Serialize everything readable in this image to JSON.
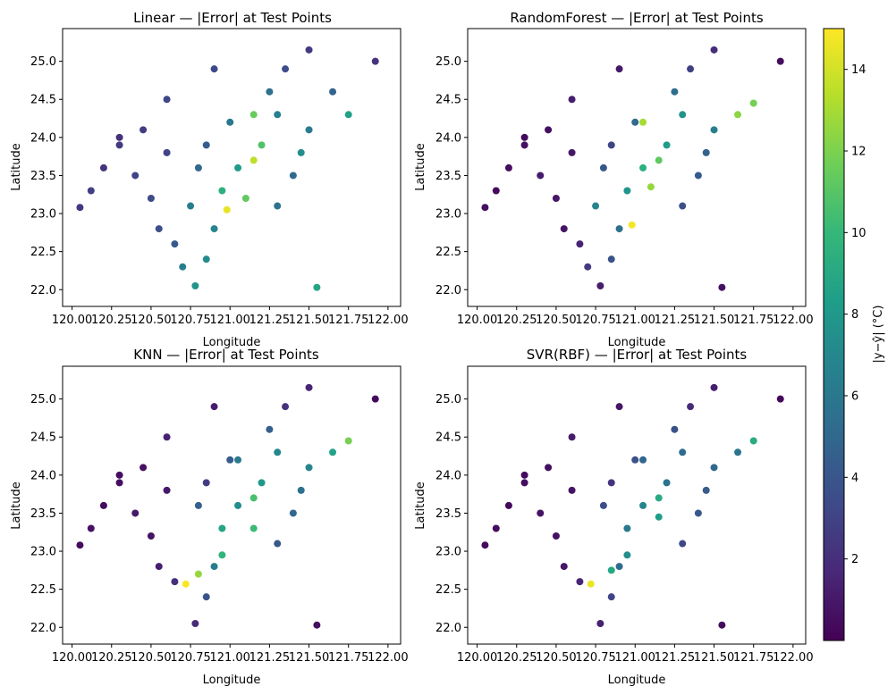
{
  "chart_data": [
    {
      "type": "scatter",
      "title": "Linear — |Error| at Test Points",
      "xlabel": "Longitude",
      "ylabel": "Latitude",
      "xlim": [
        119.94,
        122.08
      ],
      "ylim": [
        21.78,
        25.43
      ],
      "xticks": [
        "120.00",
        "120.25",
        "120.50",
        "120.75",
        "121.00",
        "121.25",
        "121.50",
        "121.75",
        "122.00"
      ],
      "yticks": [
        "22.0",
        "22.5",
        "23.0",
        "23.5",
        "24.0",
        "24.5",
        "25.0"
      ],
      "points": [
        [
          120.05,
          23.08,
          2.4
        ],
        [
          120.12,
          23.3,
          2.8
        ],
        [
          120.2,
          23.6,
          2.2
        ],
        [
          120.3,
          23.9,
          2.6
        ],
        [
          120.4,
          23.5,
          3.1
        ],
        [
          120.5,
          23.2,
          3.4
        ],
        [
          120.55,
          22.8,
          3.6
        ],
        [
          120.65,
          22.6,
          4.2
        ],
        [
          120.7,
          22.3,
          6.5
        ],
        [
          120.78,
          22.05,
          7.8
        ],
        [
          120.85,
          22.4,
          7.2
        ],
        [
          120.9,
          22.8,
          6.8
        ],
        [
          120.95,
          23.3,
          9.5
        ],
        [
          121.05,
          23.6,
          8.2
        ],
        [
          121.15,
          23.7,
          13.5
        ],
        [
          121.2,
          23.9,
          10.8
        ],
        [
          121.15,
          24.3,
          11.5
        ],
        [
          121.25,
          24.6,
          5.5
        ],
        [
          121.35,
          24.9,
          3.5
        ],
        [
          121.5,
          25.15,
          2.6
        ],
        [
          121.65,
          24.6,
          4.8
        ],
        [
          121.75,
          24.3,
          8.5
        ],
        [
          121.5,
          24.1,
          6.2
        ],
        [
          121.4,
          23.5,
          5.2
        ],
        [
          121.3,
          23.1,
          5.8
        ],
        [
          121.55,
          22.03,
          8.8
        ],
        [
          121.92,
          25.0,
          2.2
        ],
        [
          120.3,
          24.0,
          2.1
        ],
        [
          120.45,
          24.1,
          2.7
        ],
        [
          120.6,
          24.5,
          3.2
        ],
        [
          120.9,
          24.9,
          3.3
        ],
        [
          121.0,
          24.2,
          6.0
        ],
        [
          120.8,
          23.6,
          5.0
        ],
        [
          120.85,
          23.9,
          4.4
        ],
        [
          121.1,
          23.2,
          11.3
        ],
        [
          120.98,
          23.05,
          14.5
        ],
        [
          120.75,
          23.1,
          6.4
        ],
        [
          120.6,
          23.8,
          3.0
        ],
        [
          121.3,
          24.3,
          6.6
        ],
        [
          121.45,
          23.8,
          7.4
        ]
      ]
    },
    {
      "type": "scatter",
      "title": "RandomForest — |Error| at Test Points",
      "xlabel": "Longitude",
      "ylabel": "Latitude",
      "xlim": [
        119.94,
        122.08
      ],
      "ylim": [
        21.78,
        25.43
      ],
      "xticks": [
        "120.00",
        "120.25",
        "120.50",
        "120.75",
        "121.00",
        "121.25",
        "121.50",
        "121.75",
        "122.00"
      ],
      "yticks": [
        "22.0",
        "22.5",
        "23.0",
        "23.5",
        "24.0",
        "24.5",
        "25.0"
      ],
      "points": [
        [
          120.05,
          23.08,
          0.6
        ],
        [
          120.12,
          23.3,
          0.4
        ],
        [
          120.2,
          23.6,
          0.5
        ],
        [
          120.3,
          23.9,
          0.7
        ],
        [
          120.4,
          23.5,
          1.1
        ],
        [
          120.5,
          23.2,
          0.9
        ],
        [
          120.55,
          22.8,
          0.8
        ],
        [
          120.65,
          22.6,
          1.5
        ],
        [
          120.7,
          22.3,
          2.5
        ],
        [
          120.78,
          22.05,
          1.2
        ],
        [
          120.85,
          22.4,
          3.8
        ],
        [
          120.9,
          22.8,
          5.5
        ],
        [
          120.95,
          23.3,
          7.8
        ],
        [
          121.05,
          23.6,
          9.5
        ],
        [
          121.15,
          23.7,
          11.2
        ],
        [
          121.2,
          23.9,
          8.2
        ],
        [
          121.05,
          24.2,
          13.0
        ],
        [
          121.25,
          24.6,
          5.4
        ],
        [
          121.35,
          24.9,
          2.8
        ],
        [
          121.5,
          25.15,
          1.9
        ],
        [
          121.65,
          24.3,
          12.4
        ],
        [
          121.75,
          24.45,
          11.8
        ],
        [
          121.5,
          24.1,
          6.5
        ],
        [
          121.4,
          23.5,
          4.2
        ],
        [
          121.3,
          23.1,
          3.6
        ],
        [
          121.55,
          22.03,
          0.7
        ],
        [
          121.92,
          25.0,
          0.5
        ],
        [
          120.3,
          24.0,
          0.4
        ],
        [
          120.45,
          24.1,
          0.6
        ],
        [
          120.6,
          24.5,
          1.3
        ],
        [
          120.9,
          24.9,
          1.0
        ],
        [
          121.0,
          24.2,
          5.1
        ],
        [
          120.8,
          23.6,
          4.0
        ],
        [
          120.85,
          23.9,
          3.1
        ],
        [
          121.1,
          23.35,
          12.6
        ],
        [
          120.98,
          22.85,
          14.8
        ],
        [
          120.75,
          23.1,
          6.8
        ],
        [
          120.6,
          23.8,
          0.9
        ],
        [
          121.3,
          24.3,
          7.7
        ],
        [
          121.45,
          23.8,
          4.7
        ]
      ]
    },
    {
      "type": "scatter",
      "title": "KNN — |Error| at Test Points",
      "xlabel": "Longitude",
      "ylabel": "Latitude",
      "xlim": [
        119.94,
        122.08
      ],
      "ylim": [
        21.78,
        25.43
      ],
      "xticks": [
        "120.00",
        "120.25",
        "120.50",
        "120.75",
        "121.00",
        "121.25",
        "121.50",
        "121.75",
        "122.00"
      ],
      "yticks": [
        "22.0",
        "22.5",
        "23.0",
        "23.5",
        "24.0",
        "24.5",
        "25.0"
      ],
      "points": [
        [
          120.05,
          23.08,
          0.5
        ],
        [
          120.12,
          23.3,
          0.7
        ],
        [
          120.2,
          23.6,
          0.4
        ],
        [
          120.3,
          23.9,
          0.6
        ],
        [
          120.4,
          23.5,
          1.0
        ],
        [
          120.5,
          23.2,
          0.8
        ],
        [
          120.55,
          22.8,
          1.2
        ],
        [
          120.65,
          22.6,
          2.0
        ],
        [
          120.72,
          22.57,
          14.9
        ],
        [
          120.78,
          22.05,
          1.8
        ],
        [
          120.85,
          22.4,
          3.9
        ],
        [
          120.9,
          22.8,
          6.3
        ],
        [
          120.95,
          23.3,
          8.8
        ],
        [
          121.05,
          23.6,
          7.4
        ],
        [
          121.15,
          23.7,
          10.6
        ],
        [
          121.2,
          23.9,
          7.9
        ],
        [
          121.05,
          24.2,
          6.2
        ],
        [
          121.25,
          24.6,
          4.5
        ],
        [
          121.35,
          24.9,
          2.2
        ],
        [
          121.5,
          25.15,
          1.6
        ],
        [
          121.65,
          24.3,
          8.6
        ],
        [
          121.75,
          24.45,
          11.9
        ],
        [
          121.5,
          24.1,
          6.8
        ],
        [
          121.4,
          23.5,
          5.0
        ],
        [
          121.3,
          23.1,
          4.1
        ],
        [
          121.55,
          22.03,
          0.6
        ],
        [
          121.92,
          25.0,
          0.4
        ],
        [
          120.3,
          24.0,
          0.5
        ],
        [
          120.45,
          24.1,
          0.7
        ],
        [
          120.6,
          24.5,
          1.4
        ],
        [
          120.9,
          24.9,
          1.1
        ],
        [
          121.0,
          24.2,
          4.4
        ],
        [
          120.8,
          23.6,
          4.6
        ],
        [
          120.85,
          23.9,
          2.7
        ],
        [
          121.15,
          23.3,
          10.2
        ],
        [
          120.95,
          22.95,
          9.7
        ],
        [
          120.8,
          22.7,
          12.6
        ],
        [
          120.6,
          23.8,
          1.0
        ],
        [
          121.3,
          24.3,
          6.9
        ],
        [
          121.45,
          23.8,
          5.5
        ]
      ]
    },
    {
      "type": "scatter",
      "title": "SVR(RBF) — |Error| at Test Points",
      "xlabel": "Longitude",
      "ylabel": "Latitude",
      "xlim": [
        119.94,
        122.08
      ],
      "ylim": [
        21.78,
        25.43
      ],
      "xticks": [
        "120.00",
        "120.25",
        "120.50",
        "120.75",
        "121.00",
        "121.25",
        "121.50",
        "121.75",
        "122.00"
      ],
      "yticks": [
        "22.0",
        "22.5",
        "23.0",
        "23.5",
        "24.0",
        "24.5",
        "25.0"
      ],
      "points": [
        [
          120.05,
          23.08,
          0.4
        ],
        [
          120.12,
          23.3,
          0.5
        ],
        [
          120.2,
          23.6,
          0.3
        ],
        [
          120.3,
          23.9,
          0.5
        ],
        [
          120.4,
          23.5,
          0.8
        ],
        [
          120.5,
          23.2,
          0.7
        ],
        [
          120.55,
          22.8,
          0.9
        ],
        [
          120.65,
          22.6,
          1.6
        ],
        [
          120.72,
          22.57,
          14.6
        ],
        [
          120.78,
          22.05,
          1.4
        ],
        [
          120.85,
          22.4,
          3.0
        ],
        [
          120.9,
          22.8,
          5.2
        ],
        [
          120.95,
          23.3,
          6.1
        ],
        [
          121.05,
          23.6,
          6.8
        ],
        [
          121.15,
          23.7,
          9.1
        ],
        [
          121.2,
          23.9,
          5.7
        ],
        [
          121.05,
          24.2,
          4.9
        ],
        [
          121.25,
          24.6,
          3.8
        ],
        [
          121.35,
          24.9,
          1.8
        ],
        [
          121.5,
          25.15,
          1.3
        ],
        [
          121.65,
          24.3,
          5.9
        ],
        [
          121.75,
          24.45,
          9.2
        ],
        [
          121.5,
          24.1,
          5.0
        ],
        [
          121.4,
          23.5,
          4.1
        ],
        [
          121.3,
          23.1,
          3.2
        ],
        [
          121.55,
          22.03,
          0.5
        ],
        [
          121.92,
          25.0,
          0.3
        ],
        [
          120.3,
          24.0,
          0.4
        ],
        [
          120.45,
          24.1,
          0.6
        ],
        [
          120.6,
          24.5,
          1.1
        ],
        [
          120.9,
          24.9,
          0.9
        ],
        [
          121.0,
          24.2,
          3.7
        ],
        [
          120.8,
          23.6,
          3.5
        ],
        [
          120.85,
          23.9,
          2.2
        ],
        [
          121.15,
          23.45,
          8.3
        ],
        [
          120.95,
          22.95,
          7.4
        ],
        [
          120.85,
          22.75,
          8.9
        ],
        [
          120.6,
          23.8,
          0.8
        ],
        [
          121.3,
          24.3,
          5.3
        ],
        [
          121.45,
          23.8,
          4.4
        ]
      ]
    }
  ],
  "colorbar": {
    "label": "|y−ŷ| (°C)",
    "min": 0,
    "max": 15,
    "ticks": [
      2,
      4,
      6,
      8,
      10,
      12,
      14
    ],
    "tick_labels": [
      "2",
      "4",
      "6",
      "8",
      "10",
      "12",
      "14"
    ],
    "colormap": "viridis",
    "stops": [
      "#440154",
      "#482878",
      "#3e4a89",
      "#31688e",
      "#26828e",
      "#1f9e89",
      "#35b779",
      "#6ece58",
      "#b5de2b",
      "#fde725"
    ]
  }
}
